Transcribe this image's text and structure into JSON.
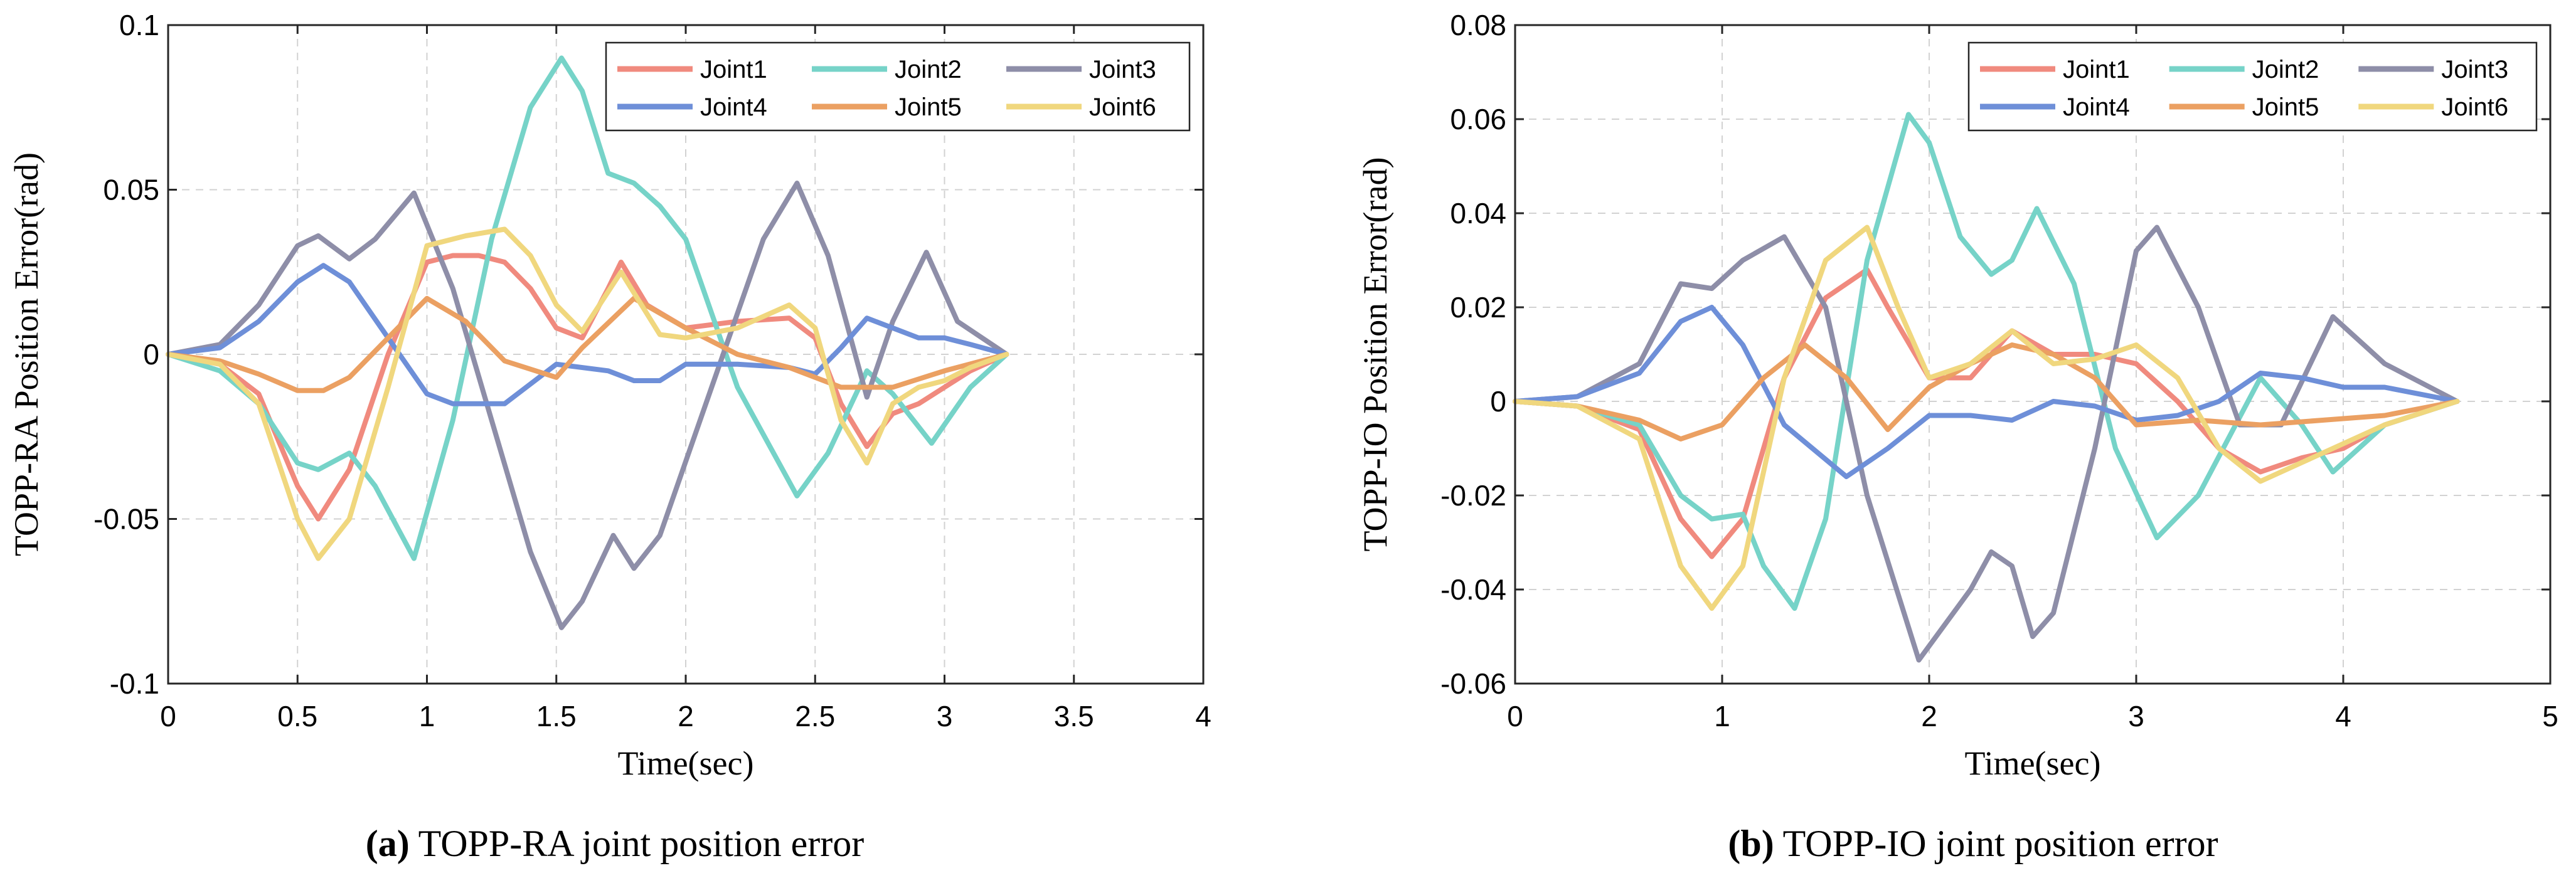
{
  "chart_data": [
    {
      "type": "line",
      "xlabel": "Time(sec)",
      "ylabel": "TOPP-RA Position Error(rad)",
      "xlim": [
        0,
        4
      ],
      "ylim": [
        -0.1,
        0.1
      ],
      "xticks": [
        "0",
        "0.5",
        "1",
        "1.5",
        "2",
        "2.5",
        "3",
        "3.5",
        "4"
      ],
      "yticks": [
        "-0.1",
        "-0.05",
        "0",
        "0.05",
        "0.1"
      ],
      "grid": true,
      "legend_position": "top-right",
      "caption_label": "(a)",
      "caption_text": " TOPP-RA joint position error",
      "series": [
        {
          "name": "Joint1",
          "color": "#F08A7E",
          "x": [
            0,
            0.2,
            0.35,
            0.5,
            0.58,
            0.7,
            0.85,
            1.0,
            1.1,
            1.2,
            1.3,
            1.4,
            1.5,
            1.6,
            1.7,
            1.75,
            1.85,
            2.0,
            2.2,
            2.4,
            2.5,
            2.6,
            2.7,
            2.8,
            2.9,
            3.0,
            3.1,
            3.24
          ],
          "values": [
            0,
            -0.003,
            -0.012,
            -0.04,
            -0.05,
            -0.035,
            0.0,
            0.028,
            0.03,
            0.03,
            0.028,
            0.02,
            0.008,
            0.005,
            0.02,
            0.028,
            0.015,
            0.008,
            0.01,
            0.011,
            0.005,
            -0.015,
            -0.028,
            -0.018,
            -0.015,
            -0.01,
            -0.005,
            0
          ]
        },
        {
          "name": "Joint2",
          "color": "#76D3C8",
          "x": [
            0,
            0.2,
            0.35,
            0.5,
            0.58,
            0.7,
            0.8,
            0.95,
            1.1,
            1.25,
            1.4,
            1.52,
            1.6,
            1.7,
            1.8,
            1.9,
            2.0,
            2.2,
            2.43,
            2.55,
            2.7,
            2.8,
            2.95,
            3.1,
            3.24
          ],
          "values": [
            0,
            -0.005,
            -0.015,
            -0.033,
            -0.035,
            -0.03,
            -0.04,
            -0.062,
            -0.02,
            0.035,
            0.075,
            0.09,
            0.08,
            0.055,
            0.052,
            0.045,
            0.035,
            -0.01,
            -0.043,
            -0.03,
            -0.005,
            -0.012,
            -0.027,
            -0.01,
            0
          ]
        },
        {
          "name": "Joint3",
          "color": "#8E8EA8",
          "x": [
            0,
            0.2,
            0.35,
            0.5,
            0.58,
            0.7,
            0.8,
            0.95,
            1.1,
            1.25,
            1.4,
            1.52,
            1.6,
            1.72,
            1.8,
            1.9,
            2.1,
            2.3,
            2.43,
            2.55,
            2.7,
            2.8,
            2.93,
            3.05,
            3.24
          ],
          "values": [
            0,
            0.003,
            0.015,
            0.033,
            0.036,
            0.029,
            0.035,
            0.049,
            0.02,
            -0.02,
            -0.06,
            -0.083,
            -0.075,
            -0.055,
            -0.065,
            -0.055,
            -0.01,
            0.035,
            0.052,
            0.03,
            -0.013,
            0.01,
            0.031,
            0.01,
            0
          ]
        },
        {
          "name": "Joint4",
          "color": "#6E8FD8",
          "x": [
            0,
            0.2,
            0.35,
            0.5,
            0.6,
            0.7,
            0.85,
            1.0,
            1.1,
            1.3,
            1.5,
            1.7,
            1.8,
            1.9,
            2.0,
            2.2,
            2.4,
            2.5,
            2.6,
            2.7,
            2.8,
            2.9,
            3.0,
            3.1,
            3.24
          ],
          "values": [
            0,
            0.002,
            0.01,
            0.022,
            0.027,
            0.022,
            0.005,
            -0.012,
            -0.015,
            -0.015,
            -0.003,
            -0.005,
            -0.008,
            -0.008,
            -0.003,
            -0.003,
            -0.004,
            -0.006,
            0.002,
            0.011,
            0.008,
            0.005,
            0.005,
            0.003,
            0
          ]
        },
        {
          "name": "Joint5",
          "color": "#EBA062",
          "x": [
            0,
            0.2,
            0.35,
            0.5,
            0.6,
            0.7,
            0.85,
            1.0,
            1.15,
            1.3,
            1.5,
            1.6,
            1.8,
            2.0,
            2.2,
            2.4,
            2.6,
            2.8,
            3.0,
            3.24
          ],
          "values": [
            0,
            -0.002,
            -0.006,
            -0.011,
            -0.011,
            -0.007,
            0.005,
            0.017,
            0.01,
            -0.002,
            -0.007,
            0.002,
            0.017,
            0.008,
            0.0,
            -0.004,
            -0.01,
            -0.01,
            -0.005,
            0
          ]
        },
        {
          "name": "Joint6",
          "color": "#F0D77E",
          "x": [
            0,
            0.2,
            0.35,
            0.5,
            0.58,
            0.7,
            0.85,
            1.0,
            1.15,
            1.3,
            1.4,
            1.5,
            1.6,
            1.75,
            1.9,
            2.0,
            2.2,
            2.4,
            2.5,
            2.6,
            2.7,
            2.8,
            2.9,
            3.0,
            3.1,
            3.24
          ],
          "values": [
            0,
            -0.003,
            -0.015,
            -0.05,
            -0.062,
            -0.05,
            -0.01,
            0.033,
            0.036,
            0.038,
            0.03,
            0.015,
            0.007,
            0.025,
            0.006,
            0.005,
            0.008,
            0.015,
            0.008,
            -0.02,
            -0.033,
            -0.015,
            -0.01,
            -0.008,
            -0.004,
            0
          ]
        }
      ]
    },
    {
      "type": "line",
      "xlabel": "Time(sec)",
      "ylabel": "TOPP-IO Position Error(rad)",
      "xlim": [
        0,
        5
      ],
      "ylim": [
        -0.06,
        0.08
      ],
      "xticks": [
        "0",
        "1",
        "2",
        "3",
        "4",
        "5"
      ],
      "yticks": [
        "-0.06",
        "-0.04",
        "-0.02",
        "0",
        "0.02",
        "0.04",
        "0.06",
        "0.08"
      ],
      "grid": true,
      "legend_position": "top-right",
      "caption_label": "(b)",
      "caption_text": " TOPP-IO joint position error",
      "series": [
        {
          "name": "Joint1",
          "color": "#F08A7E",
          "x": [
            0,
            0.3,
            0.6,
            0.8,
            0.95,
            1.1,
            1.3,
            1.5,
            1.7,
            1.8,
            2.0,
            2.2,
            2.4,
            2.6,
            2.8,
            3.0,
            3.2,
            3.4,
            3.6,
            3.8,
            4.0,
            4.2,
            4.55
          ],
          "values": [
            0,
            -0.001,
            -0.006,
            -0.025,
            -0.033,
            -0.025,
            0.005,
            0.022,
            0.028,
            0.02,
            0.005,
            0.005,
            0.015,
            0.01,
            0.01,
            0.008,
            0.0,
            -0.01,
            -0.015,
            -0.012,
            -0.01,
            -0.005,
            0
          ]
        },
        {
          "name": "Joint2",
          "color": "#76D3C8",
          "x": [
            0,
            0.3,
            0.6,
            0.8,
            0.95,
            1.1,
            1.2,
            1.35,
            1.5,
            1.7,
            1.9,
            2.0,
            2.15,
            2.3,
            2.4,
            2.52,
            2.7,
            2.9,
            3.1,
            3.3,
            3.6,
            3.8,
            3.95,
            4.2,
            4.55
          ],
          "values": [
            0,
            -0.001,
            -0.005,
            -0.02,
            -0.025,
            -0.024,
            -0.035,
            -0.044,
            -0.025,
            0.03,
            0.061,
            0.055,
            0.035,
            0.027,
            0.03,
            0.041,
            0.025,
            -0.01,
            -0.029,
            -0.02,
            0.005,
            -0.005,
            -0.015,
            -0.005,
            0
          ]
        },
        {
          "name": "Joint3",
          "color": "#8E8EA8",
          "x": [
            0,
            0.3,
            0.6,
            0.8,
            0.95,
            1.1,
            1.3,
            1.5,
            1.7,
            1.95,
            2.2,
            2.3,
            2.4,
            2.5,
            2.6,
            2.8,
            3.0,
            3.1,
            3.3,
            3.5,
            3.7,
            3.95,
            4.2,
            4.55
          ],
          "values": [
            0,
            0.001,
            0.008,
            0.025,
            0.024,
            0.03,
            0.035,
            0.02,
            -0.02,
            -0.055,
            -0.04,
            -0.032,
            -0.035,
            -0.05,
            -0.045,
            -0.01,
            0.032,
            0.037,
            0.02,
            -0.005,
            -0.005,
            0.018,
            0.008,
            0
          ]
        },
        {
          "name": "Joint4",
          "color": "#6E8FD8",
          "x": [
            0,
            0.3,
            0.6,
            0.8,
            0.95,
            1.1,
            1.3,
            1.6,
            1.8,
            2.0,
            2.2,
            2.4,
            2.6,
            2.8,
            3.0,
            3.2,
            3.4,
            3.6,
            3.8,
            4.0,
            4.2,
            4.55
          ],
          "values": [
            0,
            0.001,
            0.006,
            0.017,
            0.02,
            0.012,
            -0.005,
            -0.016,
            -0.01,
            -0.003,
            -0.003,
            -0.004,
            0.0,
            -0.001,
            -0.004,
            -0.003,
            0.0,
            0.006,
            0.005,
            0.003,
            0.003,
            0
          ]
        },
        {
          "name": "Joint5",
          "color": "#EBA062",
          "x": [
            0,
            0.3,
            0.6,
            0.8,
            1.0,
            1.2,
            1.4,
            1.6,
            1.8,
            2.0,
            2.2,
            2.4,
            2.6,
            2.8,
            3.0,
            3.3,
            3.6,
            3.9,
            4.2,
            4.55
          ],
          "values": [
            0,
            -0.001,
            -0.004,
            -0.008,
            -0.005,
            0.005,
            0.012,
            0.005,
            -0.006,
            0.003,
            0.008,
            0.012,
            0.01,
            0.005,
            -0.005,
            -0.004,
            -0.005,
            -0.004,
            -0.003,
            0
          ]
        },
        {
          "name": "Joint6",
          "color": "#F0D77E",
          "x": [
            0,
            0.3,
            0.6,
            0.8,
            0.95,
            1.1,
            1.3,
            1.5,
            1.7,
            1.85,
            2.0,
            2.2,
            2.4,
            2.6,
            2.8,
            3.0,
            3.2,
            3.4,
            3.6,
            3.8,
            4.0,
            4.2,
            4.55
          ],
          "values": [
            0,
            -0.001,
            -0.008,
            -0.035,
            -0.044,
            -0.035,
            0.005,
            0.03,
            0.037,
            0.02,
            0.005,
            0.008,
            0.015,
            0.008,
            0.009,
            0.012,
            0.005,
            -0.01,
            -0.017,
            -0.013,
            -0.009,
            -0.005,
            0
          ]
        }
      ]
    }
  ]
}
